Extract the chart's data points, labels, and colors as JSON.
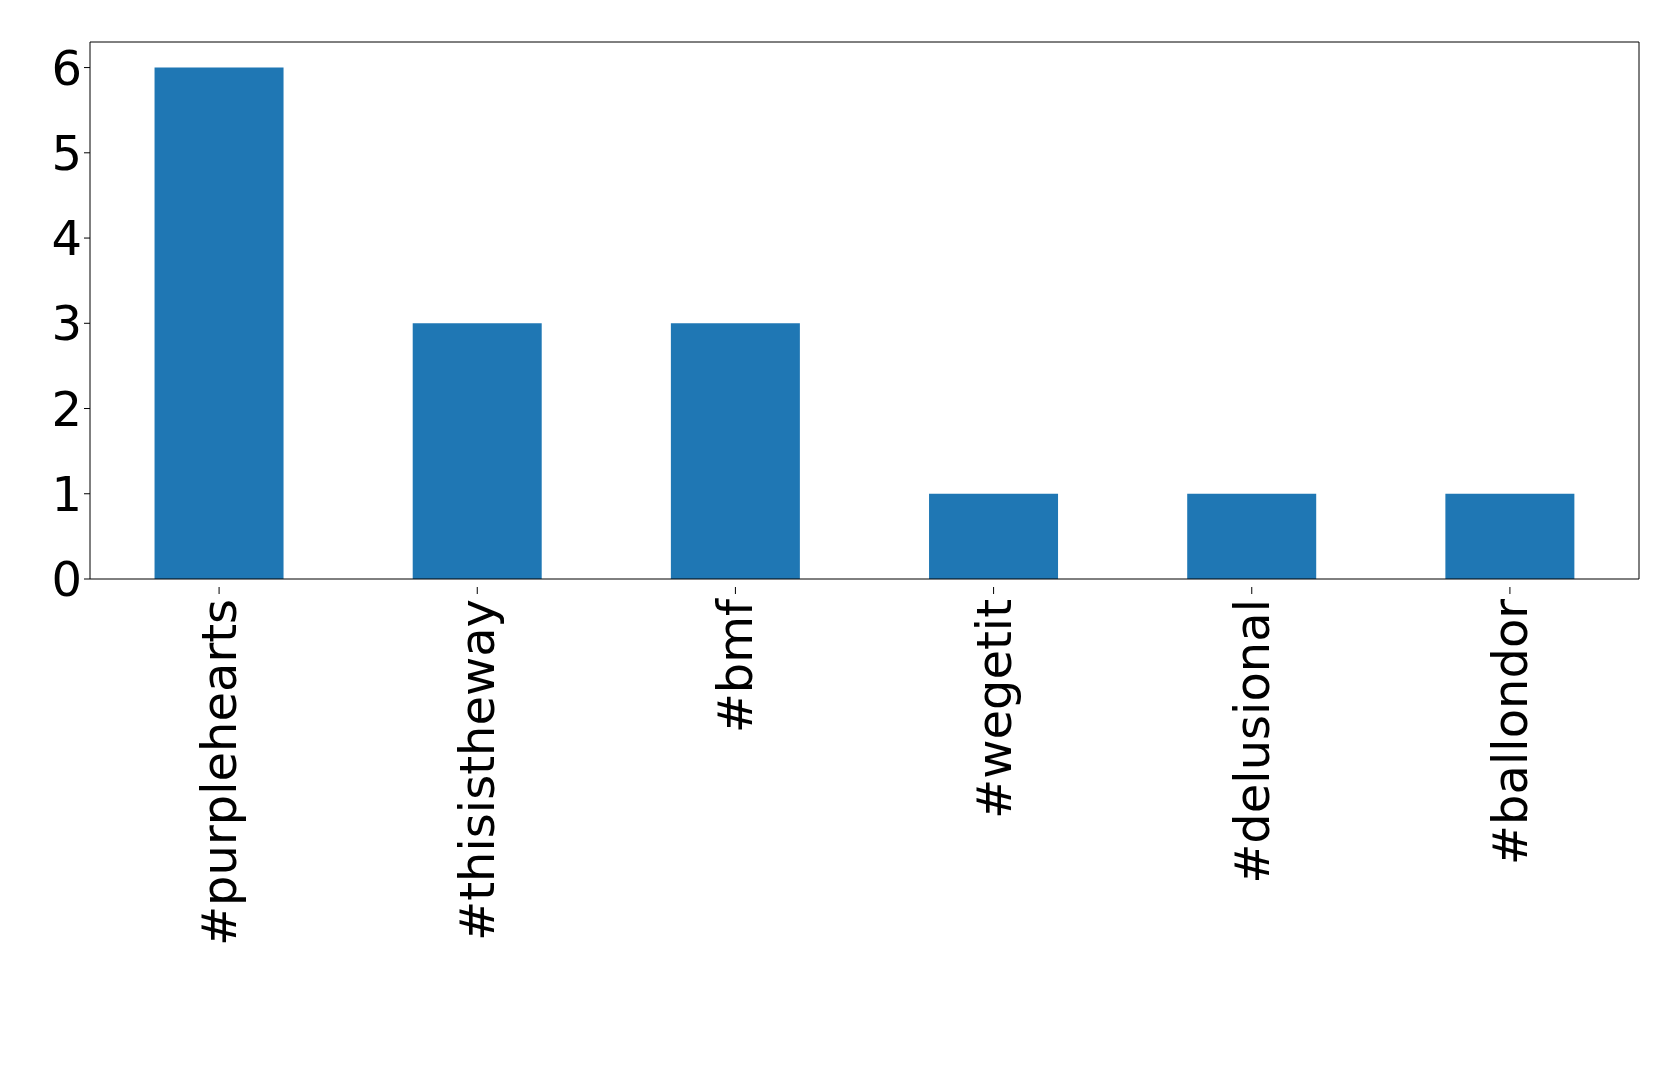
{
  "chart_data": {
    "type": "bar",
    "categories": [
      "#purplehearts",
      "#thisistheway",
      "#bmf",
      "#wegetit",
      "#delusional",
      "#ballondor"
    ],
    "values": [
      6,
      3,
      3,
      1,
      1,
      1
    ],
    "color": "#1f77b4",
    "ylim": [
      0,
      6.3
    ],
    "yticks": [
      0,
      1,
      2,
      3,
      4,
      5,
      6
    ],
    "grid": false,
    "legend": false
  }
}
